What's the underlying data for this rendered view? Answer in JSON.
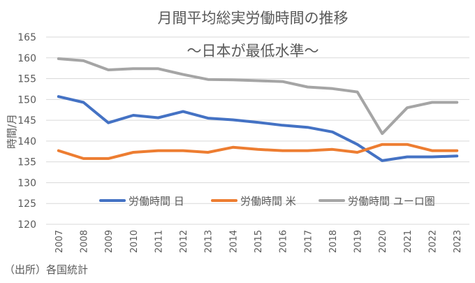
{
  "chart_data": {
    "type": "line",
    "title": "月間平均総実労働時間の推移",
    "subtitle": "～日本が最低水準～",
    "ylabel": "時間/月",
    "xlabel": "",
    "source": "（出所）各国統計",
    "categories": [
      "2007",
      "2008",
      "2009",
      "2010",
      "2011",
      "2012",
      "2013",
      "2014",
      "2015",
      "2016",
      "2017",
      "2018",
      "2019",
      "2020",
      "2021",
      "2022",
      "2023"
    ],
    "ylim": [
      120,
      165
    ],
    "yticks": [
      120,
      125,
      130,
      135,
      140,
      145,
      150,
      155,
      160,
      165
    ],
    "grid": true,
    "legend_position": "bottom-inside",
    "series": [
      {
        "name": "労働時間 日",
        "color": "#4472C4",
        "values": [
          150.7,
          149.3,
          144.4,
          146.2,
          145.6,
          147.1,
          145.5,
          145.1,
          144.5,
          143.8,
          143.3,
          142.2,
          139.2,
          135.3,
          136.2,
          136.2,
          136.4
        ]
      },
      {
        "name": "労働時間 米",
        "color": "#ED7D31",
        "values": [
          137.7,
          135.8,
          135.8,
          137.3,
          137.7,
          137.7,
          137.3,
          138.5,
          138.0,
          137.7,
          137.7,
          138.0,
          137.3,
          139.2,
          139.2,
          137.7,
          137.7
        ]
      },
      {
        "name": "労働時間 ユーロ圏",
        "color": "#A5A5A5",
        "values": [
          159.8,
          159.3,
          157.1,
          157.4,
          157.4,
          156.0,
          154.8,
          154.7,
          154.5,
          154.3,
          153.0,
          152.6,
          151.8,
          141.8,
          148.0,
          149.3,
          149.3
        ]
      }
    ]
  }
}
